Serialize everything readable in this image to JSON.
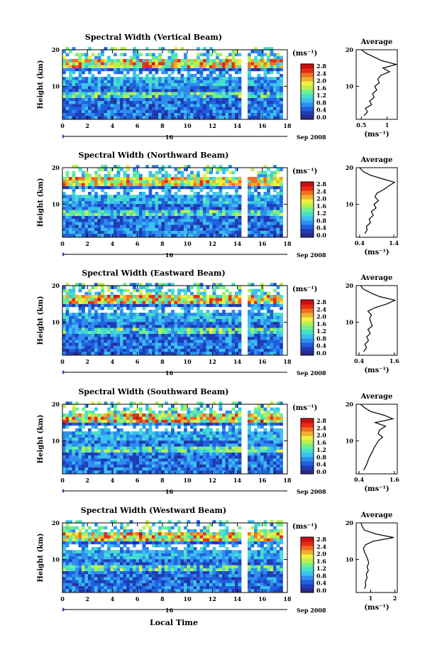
{
  "figure": {
    "shared_xlabel": "Local Time",
    "date_label": "Sep 2008",
    "day_label": "16",
    "colorbar_unit": "(ms⁻¹)",
    "colorbar_ticks": [
      "0.0",
      "0.4",
      "0.8",
      "1.2",
      "1.6",
      "2.0",
      "2.4",
      "2.8"
    ],
    "avg_xlabel": "(ms⁻¹)"
  },
  "chart_data": [
    {
      "type": "heatmap",
      "title": "Spectral Width (Vertical Beam)",
      "ylabel": "Height (km)",
      "xlabel": "",
      "x_ticks": [
        0,
        2,
        4,
        6,
        8,
        10,
        12,
        14,
        16,
        18
      ],
      "xlim": [
        0,
        18
      ],
      "y_ticks": [
        10,
        20
      ],
      "ylim": [
        1,
        20
      ],
      "colorbar": {
        "unit": "ms^-1",
        "ticks": [
          0.0,
          0.4,
          0.8,
          1.2,
          1.6,
          2.0,
          2.4,
          2.8
        ]
      },
      "data_gap_hours": [
        14.2,
        14.6
      ],
      "data_end_hour": 17.5,
      "high_band_km": [
        15,
        17
      ],
      "average_profile": {
        "title": "Average",
        "xlabel": "(ms^-1)",
        "x_ticks": [
          0.5,
          1.0
        ],
        "xlim": [
          0.4,
          1.2
        ],
        "y_ticks": [
          10,
          20
        ],
        "height_km": [
          2,
          3,
          4,
          5,
          6,
          7,
          8,
          9,
          10,
          11,
          12,
          13,
          14,
          15,
          16,
          17,
          18,
          19,
          20
        ],
        "values": [
          0.55,
          0.62,
          0.58,
          0.7,
          0.66,
          0.75,
          0.72,
          0.8,
          0.76,
          0.85,
          0.82,
          0.88,
          1.05,
          0.92,
          1.18,
          0.9,
          0.75,
          0.6,
          0.5
        ]
      }
    },
    {
      "type": "heatmap",
      "title": "Spectral Width (Northward Beam)",
      "ylabel": "Height (km)",
      "xlabel": "",
      "x_ticks": [
        0,
        2,
        4,
        6,
        8,
        10,
        12,
        14,
        16,
        18
      ],
      "xlim": [
        0,
        18
      ],
      "y_ticks": [
        10,
        20
      ],
      "ylim": [
        1,
        20
      ],
      "colorbar": {
        "unit": "ms^-1",
        "ticks": [
          0.0,
          0.4,
          0.8,
          1.2,
          1.6,
          2.0,
          2.4,
          2.8
        ]
      },
      "data_gap_hours": [
        14.2,
        14.6
      ],
      "data_end_hour": 17.5,
      "high_band_km": [
        15,
        17
      ],
      "average_profile": {
        "title": "Average",
        "xlabel": "(ms^-1)",
        "x_ticks": [
          0.4,
          1.4
        ],
        "xlim": [
          0.3,
          1.5
        ],
        "y_ticks": [
          10,
          20
        ],
        "height_km": [
          2,
          3,
          4,
          5,
          6,
          7,
          8,
          9,
          10,
          11,
          12,
          13,
          14,
          15,
          16,
          17,
          18,
          19,
          20
        ],
        "values": [
          0.55,
          0.62,
          0.6,
          0.72,
          0.68,
          0.8,
          0.74,
          0.88,
          0.82,
          0.95,
          0.85,
          0.9,
          1.1,
          1.25,
          1.42,
          1.05,
          0.7,
          0.5,
          0.4
        ]
      }
    },
    {
      "type": "heatmap",
      "title": "Spectral Width (Eastward Beam)",
      "ylabel": "Height (km)",
      "xlabel": "",
      "x_ticks": [
        0,
        2,
        4,
        6,
        8,
        10,
        12,
        14,
        16,
        18
      ],
      "xlim": [
        0,
        18
      ],
      "y_ticks": [
        10,
        20
      ],
      "ylim": [
        1,
        20
      ],
      "colorbar": {
        "unit": "ms^-1",
        "ticks": [
          0.0,
          0.4,
          0.8,
          1.2,
          1.6,
          2.0,
          2.4,
          2.8
        ]
      },
      "data_gap_hours": [
        14.2,
        14.6
      ],
      "data_end_hour": 17.5,
      "high_band_km": [
        15,
        17
      ],
      "average_profile": {
        "title": "Average",
        "xlabel": "(ms^-1)",
        "x_ticks": [
          0.4,
          1.6
        ],
        "xlim": [
          0.3,
          1.7
        ],
        "y_ticks": [
          10,
          20
        ],
        "height_km": [
          2,
          3,
          4,
          5,
          6,
          7,
          8,
          9,
          10,
          11,
          12,
          13,
          14,
          15,
          16,
          17,
          18,
          19,
          20
        ],
        "values": [
          0.55,
          0.65,
          0.6,
          0.72,
          0.66,
          0.78,
          0.7,
          0.85,
          0.8,
          0.76,
          0.82,
          0.7,
          0.95,
          1.35,
          1.62,
          1.1,
          0.8,
          0.55,
          0.45
        ]
      }
    },
    {
      "type": "heatmap",
      "title": "Spectral Width (Southward Beam)",
      "ylabel": "Height (km)",
      "xlabel": "",
      "x_ticks": [
        0,
        2,
        4,
        6,
        8,
        10,
        12,
        14,
        16,
        18
      ],
      "xlim": [
        0,
        18
      ],
      "y_ticks": [
        10,
        20
      ],
      "ylim": [
        1,
        20
      ],
      "colorbar": {
        "unit": "ms^-1",
        "ticks": [
          0.0,
          0.4,
          0.8,
          1.2,
          1.6,
          2.0,
          2.4,
          2.8
        ]
      },
      "data_gap_hours": [
        14.2,
        14.6
      ],
      "data_end_hour": 17.5,
      "high_band_km": [
        15,
        17
      ],
      "average_profile": {
        "title": "Average",
        "xlabel": "(ms^-1)",
        "x_ticks": [
          0.4,
          1.6
        ],
        "xlim": [
          0.3,
          1.7
        ],
        "y_ticks": [
          10,
          20
        ],
        "height_km": [
          2,
          3,
          4,
          5,
          6,
          7,
          8,
          9,
          10,
          11,
          12,
          13,
          14,
          15,
          16,
          17,
          18,
          19,
          20
        ],
        "values": [
          0.55,
          0.62,
          0.68,
          0.72,
          0.78,
          0.85,
          0.9,
          0.98,
          1.05,
          1.2,
          1.05,
          1.1,
          1.3,
          0.95,
          1.55,
          1.25,
          0.8,
          0.6,
          0.45
        ]
      }
    },
    {
      "type": "heatmap",
      "title": "Spectral Width (Westward Beam)",
      "ylabel": "Height (km)",
      "xlabel": "Local Time",
      "x_ticks": [
        0,
        2,
        4,
        6,
        8,
        10,
        12,
        14,
        16,
        18
      ],
      "xlim": [
        0,
        18
      ],
      "y_ticks": [
        10,
        20
      ],
      "ylim": [
        1,
        20
      ],
      "colorbar": {
        "unit": "ms^-1",
        "ticks": [
          0.0,
          0.4,
          0.8,
          1.2,
          1.6,
          2.0,
          2.4,
          2.8
        ]
      },
      "data_gap_hours": [
        14.2,
        14.6
      ],
      "data_end_hour": 17.5,
      "high_band_km": [
        15,
        17
      ],
      "average_profile": {
        "title": "Average",
        "xlabel": "(ms^-1)",
        "x_ticks": [
          1,
          2
        ],
        "xlim": [
          0.4,
          2.1
        ],
        "y_ticks": [
          10,
          20
        ],
        "height_km": [
          2,
          3,
          4,
          5,
          6,
          7,
          8,
          9,
          10,
          11,
          12,
          13,
          14,
          15,
          16,
          17,
          18,
          19,
          20
        ],
        "values": [
          0.75,
          0.8,
          0.78,
          0.85,
          0.82,
          0.9,
          0.85,
          0.92,
          0.88,
          0.82,
          0.75,
          0.7,
          0.78,
          1.1,
          1.95,
          1.2,
          0.75,
          0.65,
          0.6
        ]
      }
    }
  ]
}
